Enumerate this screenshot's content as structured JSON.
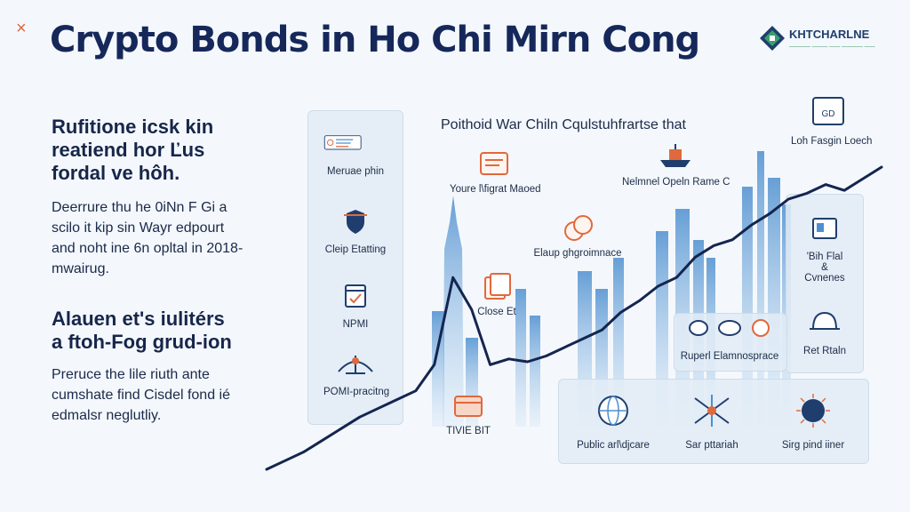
{
  "header": {
    "close_glyph": "×",
    "title": "Crypto Bonds in Ho Chi Mirn Cong",
    "logo_name": "KHTCHARLNE",
    "logo_sub": "———— ——— —— ———— ——"
  },
  "left": {
    "heading1": [
      "Rufitione icsk kin",
      "reatiend hor Ľus",
      "fordal ve hôh."
    ],
    "para1": [
      "Deerrure thu he 0iNn F Gi a",
      "scilo it kip sin Wayr edpourt",
      "and noht ine 6n opltal in 2018-",
      "mwairug."
    ],
    "heading2": [
      "Alauen et's iulitérs",
      "a ftoh-Fog grud-ion"
    ],
    "para2": [
      "Preruce the lile riuth ante",
      "cumshate find Cisdel fond ié",
      "edmalsr neglutliy."
    ]
  },
  "sidebar": {
    "items": [
      {
        "label": "Meruae phin",
        "icon": "document-icon"
      },
      {
        "label": "Cleip Etatting",
        "icon": "shield-icon"
      },
      {
        "label": "NPMI",
        "icon": "calendar-icon"
      },
      {
        "label": "POMI-pracitng",
        "icon": "network-icon"
      }
    ]
  },
  "center": {
    "heading": "Poithoid War Chiln Cqulstuhfrartse that",
    "items": [
      {
        "label": "Youre l\\figrat Maoed",
        "icon": "card-icon"
      },
      {
        "label": "Nelmnel Opeln Rame C",
        "icon": "ship-icon"
      },
      {
        "label": "Elaup ghgroimnace",
        "icon": "coins-icon"
      },
      {
        "label": "Close Et",
        "icon": "files-icon"
      },
      {
        "label": "TIVIE BIT",
        "icon": "box-icon"
      }
    ]
  },
  "right": {
    "top_item": {
      "label": "Loh Fasgin Loech",
      "icon_text": "GD"
    },
    "box_item": {
      "label_lines": [
        "'Bih Flal",
        "&",
        "Cvnenes"
      ]
    },
    "mid_item": {
      "label": "Ruperl Elamnosprace"
    },
    "side_item": {
      "label": "Ret Rtaln"
    }
  },
  "bottom_panel": {
    "items": [
      {
        "label": "Public arl\\djcare",
        "icon": "globe-icon"
      },
      {
        "label": "Sar pttariah",
        "icon": "drone-icon"
      },
      {
        "label": "Sirg pind iiner",
        "icon": "globe-spark-icon"
      }
    ]
  },
  "chart_data": {
    "type": "line",
    "title": "",
    "series": [
      {
        "values": [
          0,
          3,
          6,
          10,
          14,
          18,
          21,
          24,
          27,
          36,
          66,
          55,
          36,
          38,
          37,
          39,
          42,
          45,
          48,
          54,
          58,
          63,
          66,
          73,
          77,
          79,
          84,
          88,
          93,
          95,
          98,
          96,
          100,
          104
        ]
      }
    ]
  }
}
